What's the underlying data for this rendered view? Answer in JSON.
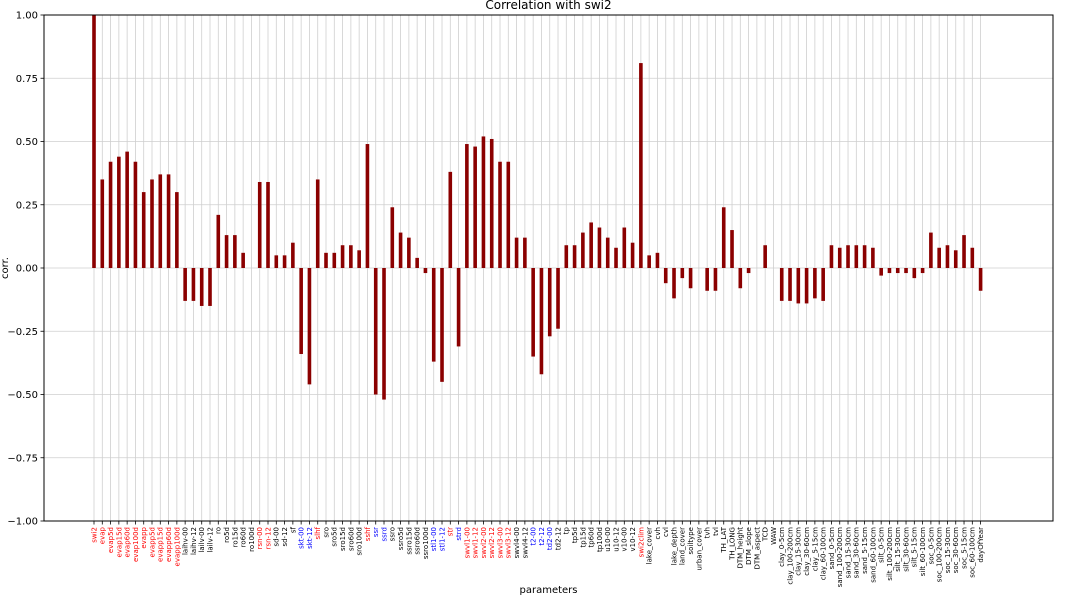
{
  "chart_data": {
    "type": "bar",
    "title": "Correlation with swi2",
    "xlabel": "parameters",
    "ylabel": "corr.",
    "ylim": [
      -1.0,
      1.0
    ],
    "yticks": [
      "1.00",
      "0.75",
      "0.50",
      "0.25",
      "0.00",
      "−0.25",
      "−0.50",
      "−0.75",
      "−1.00"
    ],
    "ytick_values": [
      1.0,
      0.75,
      0.5,
      0.25,
      0.0,
      -0.25,
      -0.5,
      -0.75,
      -1.0
    ],
    "grid": "vertical per category, horizontal at y ticks",
    "bar_color": "#8b0000",
    "label_colors": {
      "black": "#000000",
      "red": "#ff0000",
      "blue": "#0000ff"
    },
    "categories": [
      {
        "label": "swi2",
        "value": 1.0,
        "color": "red"
      },
      {
        "label": "evap",
        "value": 0.35,
        "color": "red"
      },
      {
        "label": "evap5d",
        "value": 0.42,
        "color": "red"
      },
      {
        "label": "evap15d",
        "value": 0.44,
        "color": "red"
      },
      {
        "label": "evap60d",
        "value": 0.46,
        "color": "red"
      },
      {
        "label": "evap100d",
        "value": 0.42,
        "color": "red"
      },
      {
        "label": "evapp",
        "value": 0.3,
        "color": "red"
      },
      {
        "label": "evapp5d",
        "value": 0.35,
        "color": "red"
      },
      {
        "label": "evapp15d",
        "value": 0.37,
        "color": "red"
      },
      {
        "label": "evapp60d",
        "value": 0.37,
        "color": "red"
      },
      {
        "label": "evapp100d",
        "value": 0.3,
        "color": "red"
      },
      {
        "label": "laihv-00",
        "value": -0.13,
        "color": "black"
      },
      {
        "label": "laihv-12",
        "value": -0.13,
        "color": "black"
      },
      {
        "label": "lailv-00",
        "value": -0.15,
        "color": "black"
      },
      {
        "label": "lailv-12",
        "value": -0.15,
        "color": "black"
      },
      {
        "label": "ro",
        "value": 0.21,
        "color": "black"
      },
      {
        "label": "ro5d",
        "value": 0.13,
        "color": "black"
      },
      {
        "label": "ro15d",
        "value": 0.13,
        "color": "black"
      },
      {
        "label": "ro60d",
        "value": 0.06,
        "color": "black"
      },
      {
        "label": "ro100d",
        "value": 0.0,
        "color": "black"
      },
      {
        "label": "rsn-00",
        "value": 0.34,
        "color": "red"
      },
      {
        "label": "rsn-12",
        "value": 0.34,
        "color": "red"
      },
      {
        "label": "sd-00",
        "value": 0.05,
        "color": "black"
      },
      {
        "label": "sd-12",
        "value": 0.05,
        "color": "black"
      },
      {
        "label": "sf",
        "value": 0.1,
        "color": "black"
      },
      {
        "label": "skt-00",
        "value": -0.34,
        "color": "blue"
      },
      {
        "label": "skt-12",
        "value": -0.46,
        "color": "blue"
      },
      {
        "label": "slhf",
        "value": 0.35,
        "color": "red"
      },
      {
        "label": "sro",
        "value": 0.06,
        "color": "black"
      },
      {
        "label": "sro5d",
        "value": 0.06,
        "color": "black"
      },
      {
        "label": "sro15d",
        "value": 0.09,
        "color": "black"
      },
      {
        "label": "sro60d",
        "value": 0.09,
        "color": "black"
      },
      {
        "label": "sro100d",
        "value": 0.07,
        "color": "black"
      },
      {
        "label": "sshf",
        "value": 0.49,
        "color": "red"
      },
      {
        "label": "ssr",
        "value": -0.5,
        "color": "blue"
      },
      {
        "label": "ssrd",
        "value": -0.52,
        "color": "blue"
      },
      {
        "label": "ssro",
        "value": 0.24,
        "color": "black"
      },
      {
        "label": "ssro5d",
        "value": 0.14,
        "color": "black"
      },
      {
        "label": "ssro15d",
        "value": 0.12,
        "color": "black"
      },
      {
        "label": "ssro60d",
        "value": 0.04,
        "color": "black"
      },
      {
        "label": "ssro100d",
        "value": -0.02,
        "color": "black"
      },
      {
        "label": "stl1-00",
        "value": -0.37,
        "color": "blue"
      },
      {
        "label": "stl1-12",
        "value": -0.45,
        "color": "blue"
      },
      {
        "label": "str",
        "value": 0.38,
        "color": "red"
      },
      {
        "label": "strd",
        "value": -0.31,
        "color": "blue"
      },
      {
        "label": "swvl1-00",
        "value": 0.49,
        "color": "red"
      },
      {
        "label": "swvl1-12",
        "value": 0.48,
        "color": "red"
      },
      {
        "label": "swvl2-00",
        "value": 0.52,
        "color": "red"
      },
      {
        "label": "swvl2-12",
        "value": 0.51,
        "color": "red"
      },
      {
        "label": "swvl3-00",
        "value": 0.42,
        "color": "red"
      },
      {
        "label": "swvl3-12",
        "value": 0.42,
        "color": "red"
      },
      {
        "label": "swvl4-00",
        "value": 0.12,
        "color": "black"
      },
      {
        "label": "swvl4-12",
        "value": 0.12,
        "color": "black"
      },
      {
        "label": "t2-00",
        "value": -0.35,
        "color": "blue"
      },
      {
        "label": "t2-12",
        "value": -0.42,
        "color": "blue"
      },
      {
        "label": "td2-00",
        "value": -0.27,
        "color": "blue"
      },
      {
        "label": "td2-12",
        "value": -0.24,
        "color": "black"
      },
      {
        "label": "tp",
        "value": 0.09,
        "color": "black"
      },
      {
        "label": "tp5d",
        "value": 0.09,
        "color": "black"
      },
      {
        "label": "tp15d",
        "value": 0.14,
        "color": "black"
      },
      {
        "label": "tp60d",
        "value": 0.18,
        "color": "black"
      },
      {
        "label": "tp100d",
        "value": 0.16,
        "color": "black"
      },
      {
        "label": "u10-00",
        "value": 0.12,
        "color": "black"
      },
      {
        "label": "u10-12",
        "value": 0.08,
        "color": "black"
      },
      {
        "label": "v10-00",
        "value": 0.16,
        "color": "black"
      },
      {
        "label": "v10-12",
        "value": 0.1,
        "color": "black"
      },
      {
        "label": "swi2clim",
        "value": 0.81,
        "color": "red"
      },
      {
        "label": "lake_cover",
        "value": 0.05,
        "color": "black"
      },
      {
        "label": "cvh",
        "value": 0.06,
        "color": "black"
      },
      {
        "label": "cvl",
        "value": -0.06,
        "color": "black"
      },
      {
        "label": "lake_depth",
        "value": -0.12,
        "color": "black"
      },
      {
        "label": "land_cover",
        "value": -0.04,
        "color": "black"
      },
      {
        "label": "soiltype",
        "value": -0.08,
        "color": "black"
      },
      {
        "label": "urban_cover",
        "value": 0.0,
        "color": "black"
      },
      {
        "label": "tvh",
        "value": -0.09,
        "color": "black"
      },
      {
        "label": "tvl",
        "value": -0.09,
        "color": "black"
      },
      {
        "label": "TH_LAT",
        "value": 0.24,
        "color": "black"
      },
      {
        "label": "TH_LONG",
        "value": 0.15,
        "color": "black"
      },
      {
        "label": "DTM_height",
        "value": -0.08,
        "color": "black"
      },
      {
        "label": "DTM_slope",
        "value": -0.02,
        "color": "black"
      },
      {
        "label": "DTM_aspect",
        "value": 0.0,
        "color": "black"
      },
      {
        "label": "TCD",
        "value": 0.09,
        "color": "black"
      },
      {
        "label": "WAW",
        "value": 0.0,
        "color": "black"
      },
      {
        "label": "clay_0-5cm",
        "value": -0.13,
        "color": "black"
      },
      {
        "label": "clay_100-200cm",
        "value": -0.13,
        "color": "black"
      },
      {
        "label": "clay_15-30cm",
        "value": -0.14,
        "color": "black"
      },
      {
        "label": "clay_30-60cm",
        "value": -0.14,
        "color": "black"
      },
      {
        "label": "clay_5-15cm",
        "value": -0.12,
        "color": "black"
      },
      {
        "label": "clay_60-100cm",
        "value": -0.13,
        "color": "black"
      },
      {
        "label": "sand_0-5cm",
        "value": 0.09,
        "color": "black"
      },
      {
        "label": "sand_100-200cm",
        "value": 0.08,
        "color": "black"
      },
      {
        "label": "sand_15-30cm",
        "value": 0.09,
        "color": "black"
      },
      {
        "label": "sand_30-60cm",
        "value": 0.09,
        "color": "black"
      },
      {
        "label": "sand_5-15cm",
        "value": 0.09,
        "color": "black"
      },
      {
        "label": "sand_60-100cm",
        "value": 0.08,
        "color": "black"
      },
      {
        "label": "silt_0-5cm",
        "value": -0.03,
        "color": "black"
      },
      {
        "label": "silt_100-200cm",
        "value": -0.02,
        "color": "black"
      },
      {
        "label": "silt_15-30cm",
        "value": -0.02,
        "color": "black"
      },
      {
        "label": "silt_30-60cm",
        "value": -0.02,
        "color": "black"
      },
      {
        "label": "silt_5-15cm",
        "value": -0.04,
        "color": "black"
      },
      {
        "label": "silt_60-100cm",
        "value": -0.02,
        "color": "black"
      },
      {
        "label": "soc_0-5cm",
        "value": 0.14,
        "color": "black"
      },
      {
        "label": "soc_100-200cm",
        "value": 0.08,
        "color": "black"
      },
      {
        "label": "soc_15-30cm",
        "value": 0.09,
        "color": "black"
      },
      {
        "label": "soc_30-60cm",
        "value": 0.07,
        "color": "black"
      },
      {
        "label": "soc_5-15cm",
        "value": 0.13,
        "color": "black"
      },
      {
        "label": "soc_60-100cm",
        "value": 0.08,
        "color": "black"
      },
      {
        "label": "dayOfYear",
        "value": -0.09,
        "color": "black"
      }
    ]
  }
}
